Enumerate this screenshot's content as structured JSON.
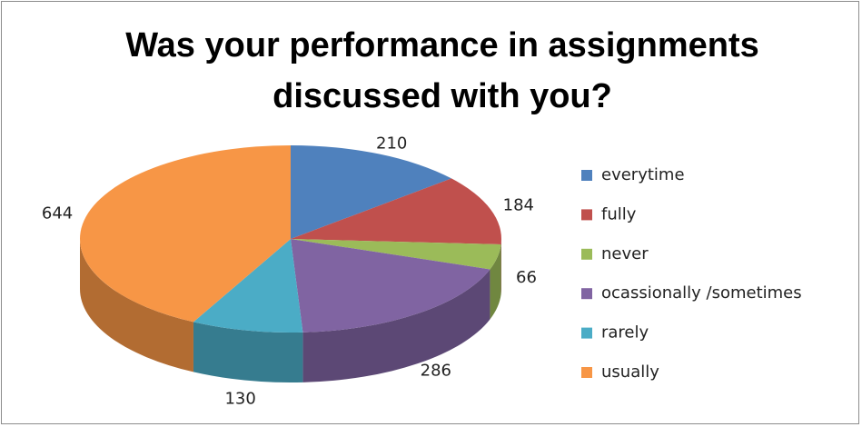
{
  "chart_data": {
    "type": "pie3d",
    "title": "Was your performance in assignments discussed with you?",
    "categories": [
      "everytime",
      "fully",
      "never",
      "ocassionally /sometimes",
      "rarely",
      "usually"
    ],
    "values": [
      210,
      184,
      66,
      286,
      130,
      644
    ],
    "colors": [
      "#4f81bd",
      "#c0504d",
      "#9bbb59",
      "#8064a2",
      "#4bacc6",
      "#f79646"
    ],
    "legend": "right"
  }
}
